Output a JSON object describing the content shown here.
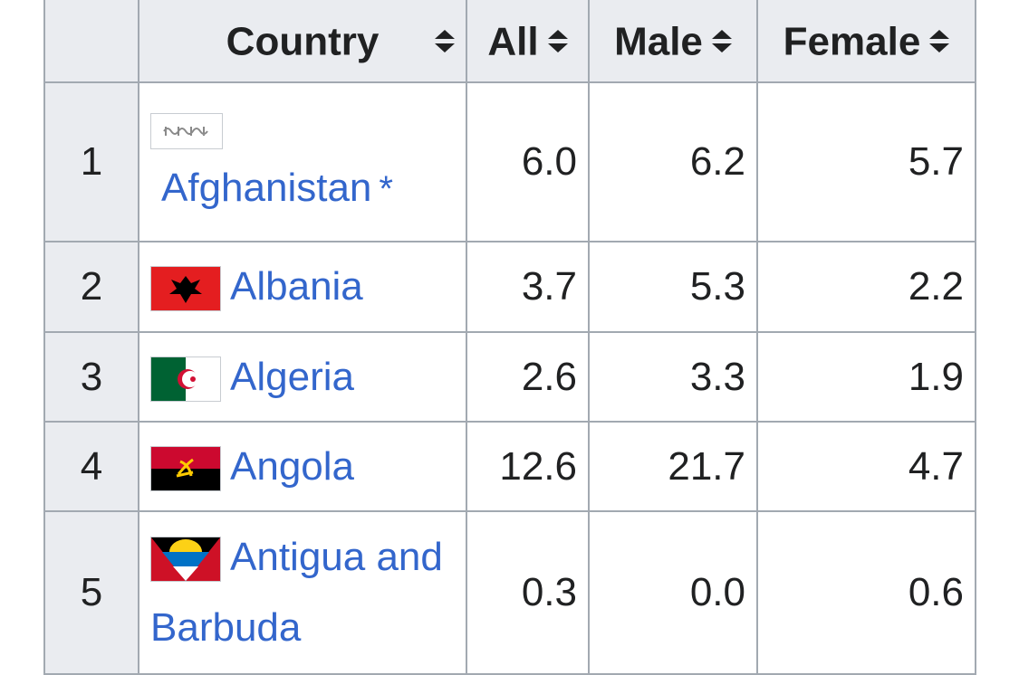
{
  "table": {
    "headers": [
      "Country",
      "All",
      "Male",
      "Female"
    ],
    "rows": [
      {
        "rank": "1",
        "country": "Afghanistan",
        "note": "*",
        "all": "6.0",
        "male": "6.2",
        "female": "5.7"
      },
      {
        "rank": "2",
        "country": "Albania",
        "all": "3.7",
        "male": "5.3",
        "female": "2.2"
      },
      {
        "rank": "3",
        "country": "Algeria",
        "all": "2.6",
        "male": "3.3",
        "female": "1.9"
      },
      {
        "rank": "4",
        "country": "Angola",
        "all": "12.6",
        "male": "21.7",
        "female": "4.7"
      },
      {
        "rank": "5",
        "country": "Antigua and Barbuda",
        "all": "0.3",
        "male": "0.0",
        "female": "0.6"
      }
    ]
  }
}
